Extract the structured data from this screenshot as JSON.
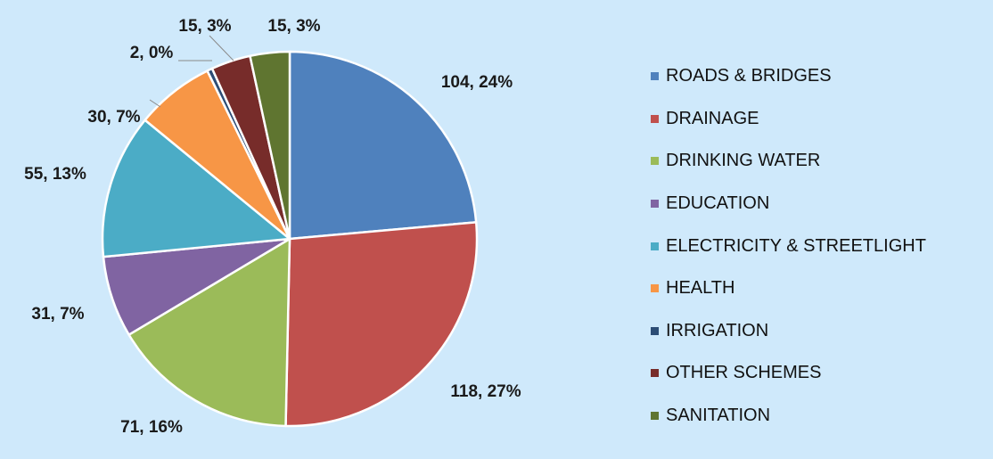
{
  "chart_data": {
    "type": "pie",
    "title": "",
    "legend_position": "right",
    "slices": [
      {
        "name": "ROADS & BRIDGES",
        "value": 104,
        "percent": "24%",
        "label": "104, 24%",
        "color": "#4f81bd"
      },
      {
        "name": "DRAINAGE",
        "value": 118,
        "percent": "27%",
        "label": "118, 27%",
        "color": "#c0504d"
      },
      {
        "name": "DRINKING WATER",
        "value": 71,
        "percent": "16%",
        "label": "71, 16%",
        "color": "#9bbb59"
      },
      {
        "name": "EDUCATION",
        "value": 31,
        "percent": "7%",
        "label": "31, 7%",
        "color": "#8064a2"
      },
      {
        "name": "ELECTRICITY & STREETLIGHT",
        "value": 55,
        "percent": "13%",
        "label": "55, 13%",
        "color": "#4bacc6"
      },
      {
        "name": "HEALTH",
        "value": 30,
        "percent": "7%",
        "label": "30, 7%",
        "color": "#f79646"
      },
      {
        "name": "IRRIGATION",
        "value": 2,
        "percent": "0%",
        "label": "2, 0%",
        "color": "#2c4d75"
      },
      {
        "name": "OTHER SCHEMES",
        "value": 15,
        "percent": "3%",
        "label": "15, 3%",
        "color": "#772c2a"
      },
      {
        "name": "SANITATION",
        "value": 15,
        "percent": "3%",
        "label": "15, 3%",
        "color": "#5f7530"
      }
    ]
  }
}
